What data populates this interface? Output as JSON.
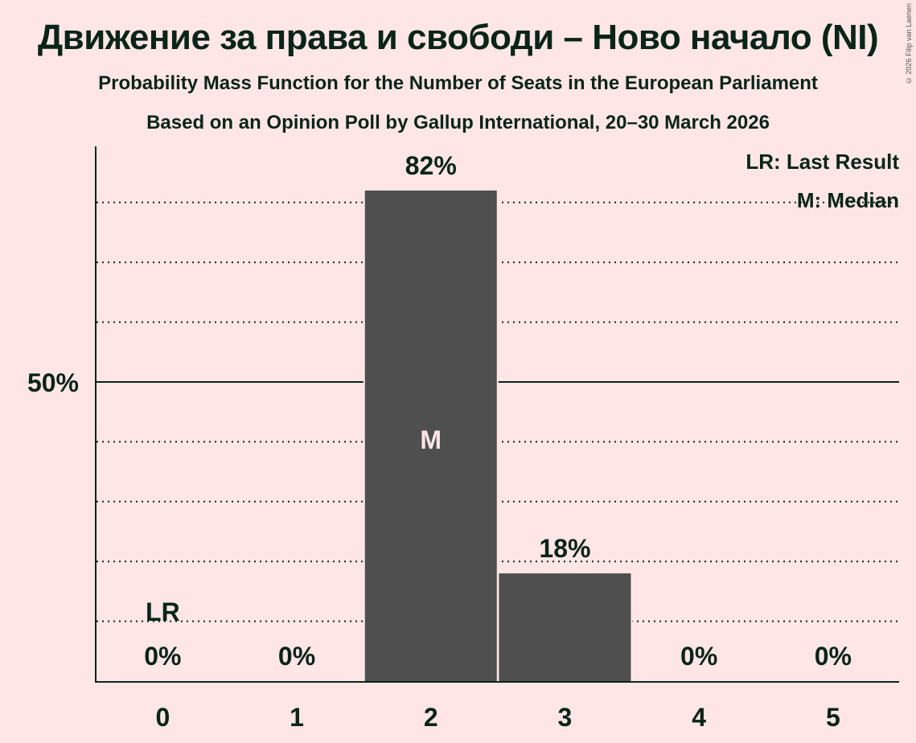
{
  "title": "Движение за права и свободи – Ново начало (NI)",
  "subtitle1": "Probability Mass Function for the Number of Seats in the European Parliament",
  "subtitle2": "Based on an Opinion Poll by Gallup International, 20–30 March 2026",
  "copyright": "© 2026 Filip van Laenen",
  "legend": {
    "lr": "LR: Last Result",
    "m": "M: Median"
  },
  "colors": {
    "background": "#FFE6E6",
    "bar": "#4F4F4F",
    "text": "#0A2418",
    "median_text": "#FFE6E6"
  },
  "chart_data": {
    "type": "bar",
    "title": "Движение за права и свободи – Ново начало (NI)",
    "subtitle": "Probability Mass Function for the Number of Seats in the European Parliament",
    "categories": [
      "0",
      "1",
      "2",
      "3",
      "4",
      "5"
    ],
    "values": [
      0,
      0,
      82,
      18,
      0,
      0
    ],
    "value_labels": [
      "0%",
      "0%",
      "82%",
      "18%",
      "0%",
      "0%"
    ],
    "xlabel": "",
    "ylabel": "",
    "ylim": [
      0,
      100
    ],
    "yticks_labeled": [
      {
        "value": 50,
        "label": "50%"
      }
    ],
    "gridlines": [
      10,
      20,
      30,
      40,
      50,
      60,
      70,
      80
    ],
    "grid": true,
    "annotations": [
      {
        "category": "0",
        "label": "LR",
        "meaning": "Last Result"
      },
      {
        "category": "2",
        "label": "M",
        "meaning": "Median"
      }
    ],
    "legend_position": "top-right"
  }
}
